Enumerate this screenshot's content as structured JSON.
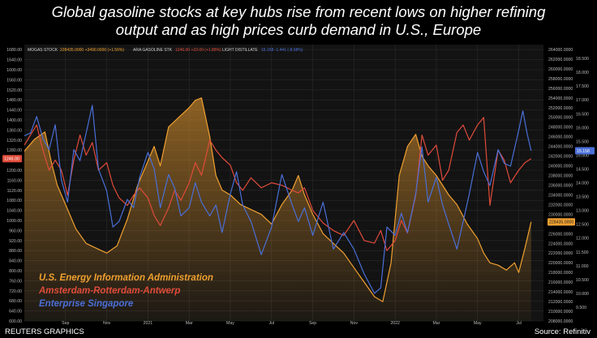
{
  "header": {
    "title_line1": "Global gasoline stocks at key hubs rise from recent lows on higher refining",
    "title_line2": "output and as high prices curb demand in U.S., Europe"
  },
  "footer": {
    "credit": "REUTERS GRAPHICS",
    "source": "Source: Refinitiv"
  },
  "legend_top": [
    {
      "label": "MOGAS STOCK",
      "value": "228435.0000 +3490.0000 (+1.56%)",
      "color": "#f0a030"
    },
    {
      "label": "ARA GASOLINE STK",
      "value": "1246.00 +23.00 (+1.88%)",
      "color": "#e04b3a"
    },
    {
      "label": "LIGHT DISTILLATE",
      "value": "15.158 -1.441 (-8.68%)",
      "color": "#4a6fd8"
    }
  ],
  "legend_big": [
    {
      "label": "U.S. Energy Information Administration",
      "color": "#f0a030"
    },
    {
      "label": "Amsterdam-Rotterdam-Antwerp",
      "color": "#e04b3a"
    },
    {
      "label": "Enterprise Singapore",
      "color": "#4a6fd8"
    }
  ],
  "colors": {
    "eia": "#f0a030",
    "ara": "#e04b3a",
    "sing": "#4a6fd8",
    "grid": "#2b2b2b",
    "axis_text": "#bbbbbb"
  },
  "chart_data": {
    "type": "line",
    "x_tick_labels": [
      "Sep",
      "Nov",
      "2021",
      "Mar",
      "May",
      "Jul",
      "Sep",
      "Nov",
      "2022",
      "Mar",
      "May",
      "Jul"
    ],
    "x_tick_months": [
      2,
      4,
      6,
      8,
      10,
      12,
      14,
      16,
      18,
      20,
      22,
      24
    ],
    "xlim_months": [
      0,
      25.2
    ],
    "left_axis": {
      "series": "Amsterdam-Rotterdam-Antwerp",
      "ylim": [
        600,
        1700
      ],
      "ticks": [
        "600.00",
        "640.00",
        "680.00",
        "720.00",
        "760.00",
        "800.00",
        "840.00",
        "880.00",
        "920.00",
        "960.00",
        "1000.00",
        "1040.00",
        "1080.00",
        "1120.00",
        "1160.00",
        "1200.00",
        "1240.00",
        "1280.00",
        "1320.00",
        "1360.00",
        "1400.00",
        "1440.00",
        "1480.00",
        "1520.00",
        "1560.00",
        "1600.00",
        "1640.00",
        "1680.00"
      ],
      "tick_values": [
        600,
        640,
        680,
        720,
        760,
        800,
        840,
        880,
        920,
        960,
        1000,
        1040,
        1080,
        1120,
        1160,
        1200,
        1240,
        1280,
        1320,
        1360,
        1400,
        1440,
        1480,
        1520,
        1560,
        1600,
        1640,
        1680
      ],
      "current_label": "1246.00"
    },
    "right_axis_outer": {
      "series": "U.S. Energy Information Administration",
      "ylim": [
        208000,
        265000
      ],
      "ticks": [
        "264000.0000",
        "262000.0000",
        "260000.0000",
        "258000.0000",
        "256000.0000",
        "254000.0000",
        "252000.0000",
        "250000.0000",
        "248000.0000",
        "246000.0000",
        "244000.0000",
        "242000.0000",
        "240000.0000",
        "238000.0000",
        "236000.0000",
        "234000.0000",
        "232000.0000",
        "230000.0000",
        "228000.0000",
        "226000.0000",
        "224000.0000",
        "222000.0000",
        "220000.0000",
        "218000.0000",
        "216000.0000",
        "214000.0000",
        "212000.0000",
        "210000.0000",
        "208000.0000"
      ],
      "tick_values": [
        264000,
        262000,
        260000,
        258000,
        256000,
        254000,
        252000,
        250000,
        248000,
        246000,
        244000,
        242000,
        240000,
        238000,
        236000,
        234000,
        232000,
        230000,
        228000,
        226000,
        224000,
        222000,
        220000,
        218000,
        216000,
        214000,
        212000,
        210000,
        208000
      ],
      "current_label": "228435.0000"
    },
    "right_axis_inner": {
      "series": "Enterprise Singapore",
      "ylim": [
        9.0,
        19.0
      ],
      "ticks": [
        "18.500",
        "18.000",
        "17.500",
        "17.000",
        "16.500",
        "16.000",
        "15.500",
        "15.000",
        "14.500",
        "14.000",
        "13.500",
        "13.000",
        "12.500",
        "12.000",
        "11.500",
        "11.000",
        "10.500",
        "10.000",
        "9.500"
      ],
      "tick_values": [
        18.5,
        18.0,
        17.5,
        17.0,
        16.5,
        16.0,
        15.5,
        15.0,
        14.5,
        14.0,
        13.5,
        13.0,
        12.5,
        12.0,
        11.5,
        11.0,
        10.5,
        10.0,
        9.5
      ],
      "current_label": "15.158"
    },
    "series": [
      {
        "name": "U.S. Energy Information Administration",
        "axis": "right_outer",
        "points": [
          [
            0,
            243000
          ],
          [
            0.5,
            245500
          ],
          [
            1.0,
            247000
          ],
          [
            1.3,
            241000
          ],
          [
            1.6,
            236000
          ],
          [
            2.0,
            232000
          ],
          [
            2.5,
            227000
          ],
          [
            3.0,
            224000
          ],
          [
            3.5,
            223000
          ],
          [
            4.0,
            222000
          ],
          [
            4.5,
            223500
          ],
          [
            5.0,
            229000
          ],
          [
            5.5,
            236000
          ],
          [
            6.0,
            241000
          ],
          [
            6.3,
            244000
          ],
          [
            6.6,
            240000
          ],
          [
            7.0,
            248000
          ],
          [
            7.5,
            250000
          ],
          [
            8.0,
            252000
          ],
          [
            8.3,
            253500
          ],
          [
            8.6,
            254000
          ],
          [
            9.0,
            246000
          ],
          [
            9.3,
            238000
          ],
          [
            9.6,
            235000
          ],
          [
            10.0,
            234000
          ],
          [
            10.5,
            232000
          ],
          [
            11.0,
            231000
          ],
          [
            11.5,
            230000
          ],
          [
            12.0,
            228000
          ],
          [
            12.5,
            232000
          ],
          [
            13.0,
            235000
          ],
          [
            13.3,
            238000
          ],
          [
            13.6,
            234000
          ],
          [
            14.0,
            230000
          ],
          [
            14.5,
            226000
          ],
          [
            15.0,
            224000
          ],
          [
            15.5,
            222000
          ],
          [
            16.0,
            219000
          ],
          [
            16.5,
            216000
          ],
          [
            17.0,
            213000
          ],
          [
            17.4,
            212000
          ],
          [
            17.8,
            220000
          ],
          [
            18.2,
            238000
          ],
          [
            18.6,
            244000
          ],
          [
            19.0,
            246500
          ],
          [
            19.3,
            242000
          ],
          [
            19.6,
            240000
          ],
          [
            20.0,
            238000
          ],
          [
            20.3,
            236000
          ],
          [
            20.6,
            234000
          ],
          [
            21.0,
            232000
          ],
          [
            21.5,
            228000
          ],
          [
            22.0,
            225000
          ],
          [
            22.3,
            222000
          ],
          [
            22.6,
            220000
          ],
          [
            23.0,
            219500
          ],
          [
            23.4,
            218500
          ],
          [
            23.8,
            220000
          ],
          [
            24.0,
            218000
          ],
          [
            24.3,
            223000
          ],
          [
            24.6,
            228435
          ]
        ]
      },
      {
        "name": "Amsterdam-Rotterdam-Antwerp",
        "axis": "left",
        "points": [
          [
            0,
            1300
          ],
          [
            0.3,
            1340
          ],
          [
            0.6,
            1380
          ],
          [
            0.9,
            1280
          ],
          [
            1.2,
            1200
          ],
          [
            1.5,
            1240
          ],
          [
            1.8,
            1200
          ],
          [
            2.1,
            1100
          ],
          [
            2.4,
            1240
          ],
          [
            2.7,
            1340
          ],
          [
            3.0,
            1260
          ],
          [
            3.3,
            1310
          ],
          [
            3.6,
            1200
          ],
          [
            4.0,
            1230
          ],
          [
            4.3,
            1140
          ],
          [
            4.6,
            1090
          ],
          [
            5.0,
            1060
          ],
          [
            5.3,
            1100
          ],
          [
            5.6,
            1130
          ],
          [
            6.0,
            1090
          ],
          [
            6.3,
            1020
          ],
          [
            6.6,
            980
          ],
          [
            7.0,
            1050
          ],
          [
            7.3,
            1120
          ],
          [
            7.6,
            1080
          ],
          [
            8.0,
            1150
          ],
          [
            8.3,
            1230
          ],
          [
            8.6,
            1180
          ],
          [
            9.0,
            1320
          ],
          [
            9.3,
            1280
          ],
          [
            9.6,
            1250
          ],
          [
            10.0,
            1220
          ],
          [
            10.3,
            1150
          ],
          [
            10.6,
            1120
          ],
          [
            11.0,
            1170
          ],
          [
            11.5,
            1130
          ],
          [
            12.0,
            1150
          ],
          [
            12.5,
            1140
          ],
          [
            13.0,
            1120
          ],
          [
            13.3,
            1110
          ],
          [
            13.6,
            1130
          ],
          [
            14.0,
            1040
          ],
          [
            14.5,
            990
          ],
          [
            15.0,
            960
          ],
          [
            15.5,
            940
          ],
          [
            16.0,
            1000
          ],
          [
            16.5,
            920
          ],
          [
            17.0,
            910
          ],
          [
            17.3,
            960
          ],
          [
            17.6,
            880
          ],
          [
            18.0,
            920
          ],
          [
            18.3,
            1000
          ],
          [
            18.6,
            950
          ],
          [
            19.0,
            1100
          ],
          [
            19.3,
            1340
          ],
          [
            19.6,
            1260
          ],
          [
            20.0,
            1300
          ],
          [
            20.3,
            1160
          ],
          [
            20.6,
            1200
          ],
          [
            21.0,
            1350
          ],
          [
            21.3,
            1380
          ],
          [
            21.6,
            1320
          ],
          [
            22.0,
            1380
          ],
          [
            22.3,
            1410
          ],
          [
            22.6,
            1060
          ],
          [
            23.0,
            1280
          ],
          [
            23.3,
            1240
          ],
          [
            23.6,
            1150
          ],
          [
            24.0,
            1200
          ],
          [
            24.3,
            1230
          ],
          [
            24.6,
            1246
          ]
        ]
      },
      {
        "name": "Enterprise Singapore",
        "axis": "right_inner",
        "points": [
          [
            0,
            15.7
          ],
          [
            0.3,
            15.8
          ],
          [
            0.6,
            16.4
          ],
          [
            0.9,
            15.6
          ],
          [
            1.2,
            15.2
          ],
          [
            1.5,
            16.1
          ],
          [
            1.8,
            14.1
          ],
          [
            2.1,
            13.3
          ],
          [
            2.4,
            15.2
          ],
          [
            2.7,
            14.8
          ],
          [
            3.0,
            15.8
          ],
          [
            3.3,
            16.8
          ],
          [
            3.6,
            14.5
          ],
          [
            4.0,
            13.7
          ],
          [
            4.3,
            12.4
          ],
          [
            4.6,
            12.6
          ],
          [
            5.0,
            13.4
          ],
          [
            5.3,
            13.1
          ],
          [
            5.6,
            14.2
          ],
          [
            6.0,
            15.1
          ],
          [
            6.3,
            14.5
          ],
          [
            6.6,
            13.1
          ],
          [
            7.0,
            14.3
          ],
          [
            7.3,
            13.8
          ],
          [
            7.6,
            12.8
          ],
          [
            8.0,
            13.1
          ],
          [
            8.3,
            14.0
          ],
          [
            8.6,
            13.3
          ],
          [
            9.0,
            12.8
          ],
          [
            9.3,
            13.2
          ],
          [
            9.6,
            12.2
          ],
          [
            10.0,
            13.6
          ],
          [
            10.3,
            14.4
          ],
          [
            10.6,
            13.2
          ],
          [
            11.0,
            12.6
          ],
          [
            11.5,
            11.4
          ],
          [
            12.0,
            12.4
          ],
          [
            12.5,
            14.3
          ],
          [
            13.0,
            13.2
          ],
          [
            13.3,
            12.6
          ],
          [
            13.6,
            13.1
          ],
          [
            14.0,
            12.1
          ],
          [
            14.5,
            13.3
          ],
          [
            15.0,
            11.6
          ],
          [
            15.5,
            12.2
          ],
          [
            16.0,
            11.6
          ],
          [
            16.5,
            10.7
          ],
          [
            17.0,
            10.0
          ],
          [
            17.3,
            10.2
          ],
          [
            17.6,
            12.4
          ],
          [
            18.0,
            12.1
          ],
          [
            18.3,
            12.9
          ],
          [
            18.6,
            12.2
          ],
          [
            19.0,
            13.6
          ],
          [
            19.3,
            15.3
          ],
          [
            19.6,
            13.3
          ],
          [
            20.0,
            14.2
          ],
          [
            20.3,
            13.2
          ],
          [
            20.6,
            12.5
          ],
          [
            21.0,
            11.6
          ],
          [
            21.3,
            12.6
          ],
          [
            21.6,
            13.6
          ],
          [
            22.0,
            15.1
          ],
          [
            22.3,
            14.4
          ],
          [
            22.6,
            13.9
          ],
          [
            23.0,
            15.2
          ],
          [
            23.3,
            14.7
          ],
          [
            23.6,
            14.6
          ],
          [
            24.0,
            15.9
          ],
          [
            24.2,
            16.6
          ],
          [
            24.4,
            15.8
          ],
          [
            24.6,
            15.158
          ]
        ]
      }
    ]
  }
}
